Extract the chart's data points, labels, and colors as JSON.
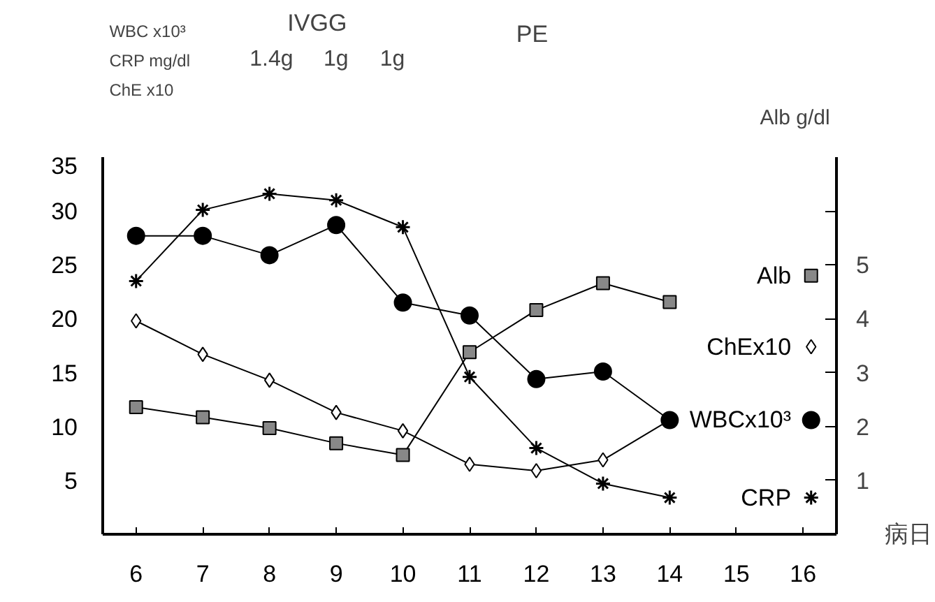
{
  "chart_data": {
    "type": "line",
    "xlabel": "病日",
    "ylabel": "WBC x10³\nCRP mg/dl\nChE x10",
    "y2label": "Alb g/dl",
    "annotations": [
      "IVGG",
      "1.4g",
      "1g",
      "1g",
      "PE"
    ],
    "x": [
      6,
      7,
      8,
      9,
      10,
      11,
      12,
      13,
      14
    ],
    "xlim": [
      5.5,
      16.5
    ],
    "xticks": [
      6,
      7,
      8,
      9,
      10,
      11,
      12,
      13,
      14,
      15,
      16
    ],
    "ylim": [
      0,
      35
    ],
    "yticks": [
      5,
      10,
      15,
      20,
      25,
      30,
      35
    ],
    "y2lim": [
      0,
      7
    ],
    "y2ticks": [
      1,
      2,
      3,
      4,
      5,
      {
        "value": 6,
        "label": null
      }
    ],
    "grid": false,
    "legend": "right",
    "line_style": "solid",
    "series": [
      {
        "name": "Alb",
        "color": "#000000",
        "marker": "square",
        "axis": "y2",
        "values": [
          2.36,
          2.17,
          1.97,
          1.69,
          1.47,
          3.38,
          4.16,
          4.66,
          4.31
        ]
      },
      {
        "name": "ChEx10",
        "color": "#000000",
        "marker": "diamond",
        "values": [
          19.8,
          16.7,
          14.3,
          11.3,
          9.6,
          6.5,
          5.9,
          6.9,
          10.6
        ]
      },
      {
        "name": "WBCx10³",
        "color": "#000000",
        "marker": "circle",
        "values": [
          27.7,
          27.7,
          25.9,
          28.7,
          21.5,
          20.3,
          14.4,
          15.1,
          10.6
        ]
      },
      {
        "name": "CRP",
        "color": "#000000",
        "marker": "cross",
        "values": [
          23.5,
          30.1,
          31.6,
          31.0,
          28.5,
          14.6,
          8.0,
          4.7,
          3.4
        ]
      }
    ]
  }
}
